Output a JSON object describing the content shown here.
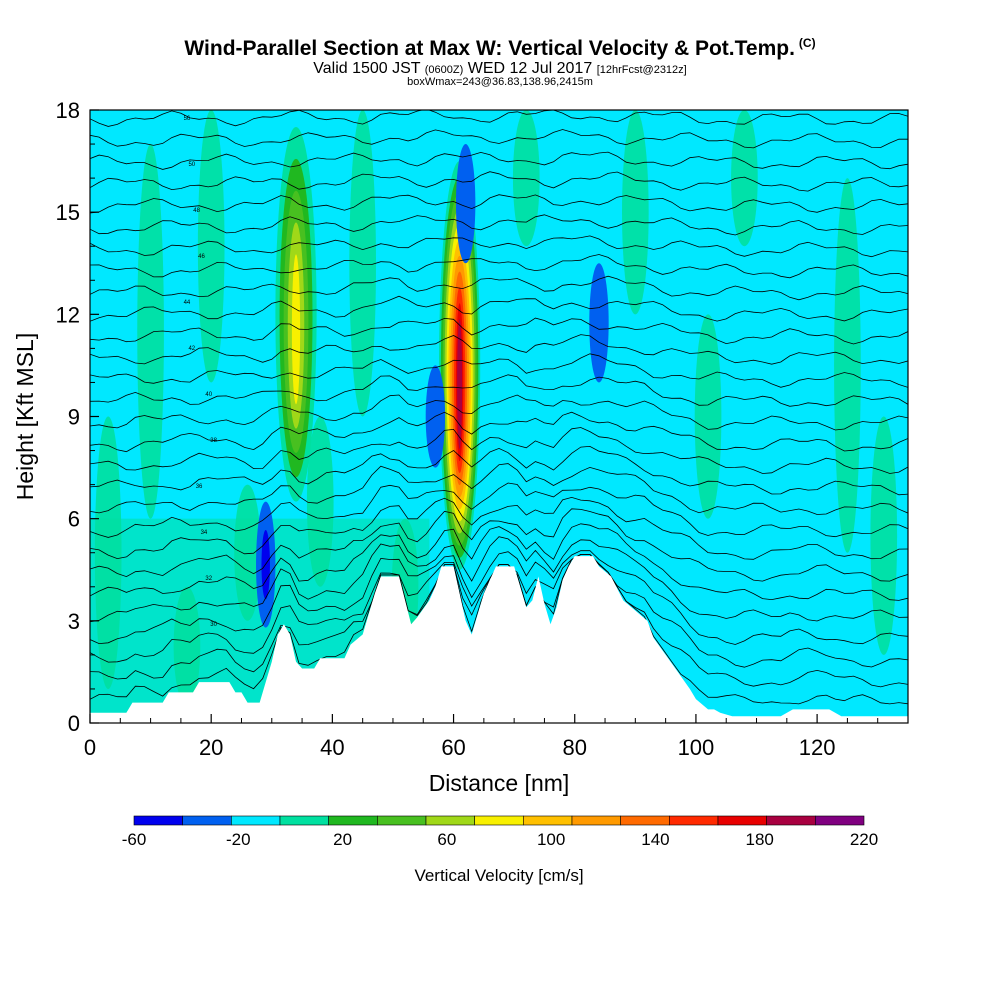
{
  "title": {
    "main": "Wind-Parallel Section at Max W: Vertical Velocity & Pot.Temp.",
    "copyright": "(C)",
    "valid_prefix": "Valid 1500 JST",
    "valid_utc": "(0600Z)",
    "valid_date": "WED 12 Jul 2017",
    "forecast": "[12hrFcst@2312z]",
    "box_info": "boxWmax=243@36.83,138.96,2415m"
  },
  "chart_data": {
    "type": "heatmap",
    "xlabel": "Distance [nm]",
    "ylabel": "Height [Kft MSL]",
    "xlim": [
      0,
      135
    ],
    "ylim": [
      0,
      18
    ],
    "x_ticks": [
      0,
      20,
      40,
      60,
      80,
      100,
      120
    ],
    "y_ticks": [
      0,
      3,
      6,
      9,
      12,
      15,
      18
    ],
    "background_level": "-20 to 0 cm/s",
    "updrafts": [
      {
        "x": 34,
        "y_bottom": 6.5,
        "y_top": 17.5,
        "peak_w": 110
      },
      {
        "x": 61,
        "y_bottom": 4.5,
        "y_top": 16.5,
        "peak_w": 220
      }
    ],
    "downdrafts": [
      {
        "x": 29,
        "y_bottom": 2.8,
        "y_top": 6.5,
        "min_w": -60
      },
      {
        "x": 57,
        "y_bottom": 7.5,
        "y_top": 10.5,
        "min_w": -40
      },
      {
        "x": 84,
        "y_bottom": 10,
        "y_top": 13.5,
        "min_w": -40
      },
      {
        "x": 62,
        "y_bottom": 13.5,
        "y_top": 17,
        "min_w": -40
      }
    ],
    "terrain": [
      [
        0,
        0.3
      ],
      [
        6,
        0.3
      ],
      [
        7,
        0.6
      ],
      [
        12,
        0.6
      ],
      [
        13,
        0.9
      ],
      [
        17,
        0.9
      ],
      [
        18,
        1.2
      ],
      [
        23,
        1.2
      ],
      [
        24,
        0.9
      ],
      [
        25,
        0.9
      ],
      [
        26,
        0.6
      ],
      [
        28,
        0.6
      ],
      [
        29,
        1.2
      ],
      [
        30,
        1.8
      ],
      [
        31,
        2.6
      ],
      [
        32,
        2.9
      ],
      [
        33,
        2.6
      ],
      [
        34,
        1.8
      ],
      [
        35,
        1.6
      ],
      [
        37,
        1.6
      ],
      [
        38,
        1.9
      ],
      [
        42,
        1.9
      ],
      [
        43,
        2.3
      ],
      [
        45,
        2.6
      ],
      [
        46,
        3.2
      ],
      [
        47,
        3.8
      ],
      [
        48,
        4.3
      ],
      [
        51,
        4.3
      ],
      [
        52,
        3.6
      ],
      [
        53,
        2.9
      ],
      [
        54,
        3.1
      ],
      [
        56,
        3.6
      ],
      [
        57,
        4.0
      ],
      [
        58,
        4.6
      ],
      [
        60,
        4.6
      ],
      [
        61,
        3.8
      ],
      [
        62,
        3.0
      ],
      [
        63,
        2.6
      ],
      [
        64,
        3.2
      ],
      [
        65,
        3.8
      ],
      [
        67,
        4.6
      ],
      [
        70,
        4.6
      ],
      [
        71,
        4.0
      ],
      [
        72,
        3.4
      ],
      [
        73,
        3.6
      ],
      [
        74,
        4.3
      ],
      [
        75,
        3.5
      ],
      [
        76,
        2.9
      ],
      [
        77,
        3.4
      ],
      [
        78,
        4.2
      ],
      [
        79,
        4.6
      ],
      [
        80,
        4.9
      ],
      [
        83,
        4.9
      ],
      [
        84,
        4.6
      ],
      [
        86,
        4.3
      ],
      [
        88,
        3.6
      ],
      [
        90,
        3.3
      ],
      [
        92,
        3.0
      ],
      [
        93,
        2.5
      ],
      [
        95,
        2.0
      ],
      [
        97,
        1.5
      ],
      [
        99,
        1.0
      ],
      [
        100,
        0.7
      ],
      [
        102,
        0.4
      ],
      [
        103,
        0.4
      ],
      [
        104,
        0.3
      ],
      [
        106,
        0.2
      ],
      [
        114,
        0.2
      ],
      [
        116,
        0.4
      ],
      [
        122,
        0.4
      ],
      [
        124,
        0.2
      ],
      [
        135,
        0.2
      ]
    ],
    "theta_contour_labels": [
      "56",
      "50",
      "48",
      "46",
      "44",
      "42",
      "40",
      "38",
      "36",
      "34",
      "32",
      "30"
    ],
    "colorbar": {
      "label": "Vertical Velocity [cm/s]",
      "tick_labels": [
        "-60",
        "-20",
        "20",
        "60",
        "100",
        "140",
        "180",
        "220"
      ],
      "colors": [
        "#0000ee",
        "#0060f0",
        "#00e8ff",
        "#00e0a0",
        "#20b820",
        "#48c020",
        "#a0d818",
        "#f8f000",
        "#ffc000",
        "#ff9a00",
        "#ff6a00",
        "#ff2a00",
        "#e80000",
        "#a80040",
        "#800080"
      ]
    }
  }
}
